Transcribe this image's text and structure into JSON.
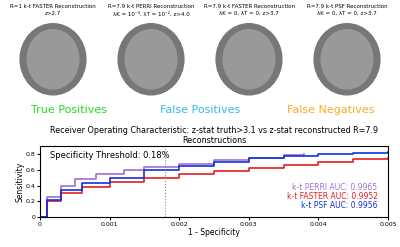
{
  "panels": [
    {
      "title": "R=1 k-t FASTER Reconstruction",
      "subtitle": "z>2.7"
    },
    {
      "title": "R=7.9 k-t PERRI Reconstruction",
      "subtitle": "λK = 10⁻⁴, λT = 10⁻², z>4.0"
    },
    {
      "title": "R=7.9 k-t FASTER Reconstruction",
      "subtitle": "λK = 0, λT = 0, z>3.7"
    },
    {
      "title": "R=7.9 k-t PSF Reconstruction",
      "subtitle": "λK = 0, λT = 0, z>3.7"
    }
  ],
  "image_legend": [
    {
      "name": "True Positives",
      "color": "#22dd22"
    },
    {
      "name": "False Positives",
      "color": "#33bbee"
    },
    {
      "name": "False Negatives",
      "color": "#ffaa22"
    }
  ],
  "chart_data": {
    "type": "line",
    "title": "Receiver Operating Characteristic: z-stat truth>3.1 vs z-stat reconstructed R=7.9 Reconstructions",
    "x_label": "1 - Specificity",
    "y_label": "Sensitivity",
    "annotation": "Specificity Threshold: 0.18%",
    "threshold": 0.0018,
    "xlim": [
      0,
      0.005
    ],
    "xticks": [
      0,
      0.001,
      0.002,
      0.003,
      0.004,
      0.005
    ],
    "ylim": [
      0,
      0.9
    ],
    "yticks": [
      0,
      0.2,
      0.4,
      0.6,
      0.8
    ],
    "line_style": "step",
    "series": [
      {
        "name": "k-t PERRI AUC: 0.9965",
        "color": "#a070d0",
        "x": [
          0,
          0.0001,
          0.0003,
          0.0005,
          0.0008,
          0.0012,
          0.0015,
          0.002,
          0.0025,
          0.003,
          0.0035,
          0.0038
        ],
        "values": [
          0,
          0.25,
          0.4,
          0.48,
          0.55,
          0.6,
          0.63,
          0.67,
          0.72,
          0.75,
          0.78,
          0.79
        ]
      },
      {
        "name": "k-t FASTER AUC: 0.9952",
        "color": "#e02020",
        "x": [
          0,
          0.0001,
          0.0003,
          0.0006,
          0.001,
          0.0015,
          0.002,
          0.0025,
          0.003,
          0.0035,
          0.004,
          0.0045,
          0.005
        ],
        "values": [
          0,
          0.2,
          0.3,
          0.38,
          0.45,
          0.5,
          0.55,
          0.58,
          0.62,
          0.66,
          0.7,
          0.73,
          0.75
        ]
      },
      {
        "name": "k-t PSF AUC: 0.9956",
        "color": "#1030e0",
        "x": [
          0,
          0.0001,
          0.0003,
          0.0006,
          0.001,
          0.0015,
          0.002,
          0.0025,
          0.003,
          0.0035,
          0.004,
          0.0045,
          0.005
        ],
        "values": [
          0,
          0.22,
          0.35,
          0.43,
          0.5,
          0.6,
          0.65,
          0.7,
          0.74,
          0.77,
          0.8,
          0.81,
          0.82
        ]
      }
    ]
  }
}
